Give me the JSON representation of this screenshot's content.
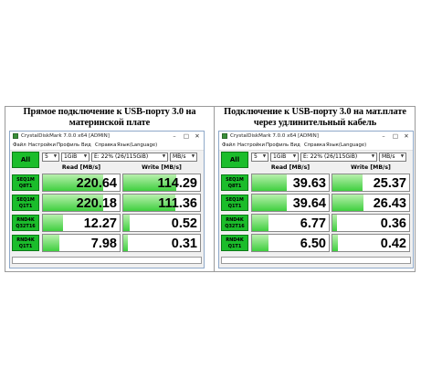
{
  "captions": {
    "left": "Прямое подключение к USB-порту 3.0 на материнской плате",
    "right": "Подключение к USB-порту 3.0 на мат.плате через удлинительный кабель"
  },
  "window": {
    "title": "CrystalDiskMark 7.0.0 x64 [ADMIN]",
    "menu": [
      "Файл",
      "Настройки",
      "Профиль",
      "Вид",
      "Справка",
      "Язык(Language)"
    ],
    "all_label": "All",
    "count": "5",
    "size": "1GiB",
    "drive": "E: 22% (26/115GiB)",
    "unit": "MB/s",
    "read_header": "Read [MB/s]",
    "write_header": "Write [MB/s]",
    "controls": {
      "minimize": "–",
      "maximize": "□",
      "close": "✕"
    }
  },
  "tests": [
    {
      "l1": "SEQ1M",
      "l2": "Q8T1"
    },
    {
      "l1": "SEQ1M",
      "l2": "Q1T1"
    },
    {
      "l1": "RND4K",
      "l2": "Q32T16"
    },
    {
      "l1": "RND4K",
      "l2": "Q1T1"
    }
  ],
  "left": {
    "read": [
      "220.64",
      "220.18",
      "12.27",
      "7.98"
    ],
    "write": [
      "114.29",
      "111.36",
      "0.52",
      "0.31"
    ],
    "read_fill": [
      0.79,
      0.78,
      0.26,
      0.22
    ],
    "write_fill": [
      0.69,
      0.68,
      0.08,
      0.06
    ]
  },
  "right": {
    "read": [
      "39.63",
      "39.64",
      "6.77",
      "6.50"
    ],
    "write": [
      "25.37",
      "26.43",
      "0.36",
      "0.42"
    ],
    "read_fill": [
      0.45,
      0.45,
      0.21,
      0.21
    ],
    "write_fill": [
      0.39,
      0.4,
      0.06,
      0.07
    ]
  }
}
